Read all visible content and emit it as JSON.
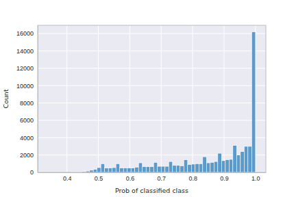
{
  "chart_data": {
    "type": "histogram",
    "x_label": "Prob of classified class",
    "y_label": "Count",
    "bins": [
      0.34,
      0.352,
      0.364,
      0.376,
      0.388,
      0.4,
      0.412,
      0.424,
      0.436,
      0.448,
      0.46,
      0.472,
      0.484,
      0.496,
      0.508,
      0.52,
      0.532,
      0.544,
      0.556,
      0.568,
      0.58,
      0.592,
      0.604,
      0.616,
      0.628,
      0.64,
      0.652,
      0.664,
      0.676,
      0.688,
      0.7,
      0.712,
      0.724,
      0.736,
      0.748,
      0.76,
      0.772,
      0.784,
      0.796,
      0.808,
      0.82,
      0.832,
      0.844,
      0.856,
      0.868,
      0.88,
      0.892,
      0.904,
      0.916,
      0.928,
      0.94,
      0.952,
      0.964,
      0.976,
      0.988,
      1.0
    ],
    "values": [
      5,
      5,
      10,
      10,
      15,
      20,
      25,
      30,
      50,
      80,
      150,
      250,
      350,
      550,
      1000,
      500,
      500,
      550,
      1000,
      500,
      500,
      500,
      500,
      600,
      1100,
      650,
      650,
      650,
      1150,
      700,
      700,
      700,
      1250,
      800,
      800,
      750,
      1450,
      900,
      950,
      1000,
      1000,
      1800,
      1100,
      1150,
      1250,
      2200,
      1350,
      1450,
      1500,
      3100,
      2000,
      2400,
      3000,
      3000,
      16200
    ],
    "color": "#5c9bc9",
    "xlim": [
      0.307,
      1.033
    ],
    "xticks": [
      0.4,
      0.5,
      0.6,
      0.7,
      0.8,
      0.9,
      {
        "value": 1,
        "label": "1.0"
      }
    ],
    "ylim": [
      0,
      16950
    ],
    "yticks": [
      0,
      2000,
      4000,
      6000,
      8000,
      10000,
      12000,
      14000,
      16000
    ],
    "grid": true
  }
}
